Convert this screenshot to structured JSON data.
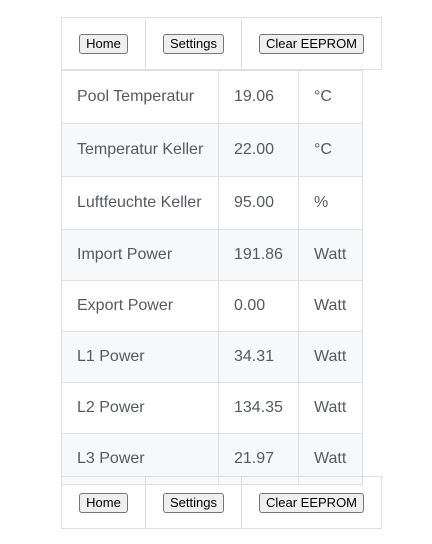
{
  "nav": {
    "home_label": "Home",
    "settings_label": "Settings",
    "clear_label": "Clear EEPROM"
  },
  "sensors": [
    {
      "name": "Pool Temperatur",
      "value": "19.06",
      "unit": "°C"
    },
    {
      "name": "Temperatur Keller",
      "value": "22.00",
      "unit": "°C"
    },
    {
      "name": "Luftfeuchte Keller",
      "value": "95.00",
      "unit": "%"
    },
    {
      "name": "Import Power",
      "value": "191.86",
      "unit": "Watt"
    },
    {
      "name": "Export Power",
      "value": "0.00",
      "unit": "Watt"
    },
    {
      "name": "L1 Power",
      "value": "34.31",
      "unit": "Watt"
    },
    {
      "name": "L2 Power",
      "value": "134.35",
      "unit": "Watt"
    },
    {
      "name": "L3 Power",
      "value": "21.97",
      "unit": "Watt"
    }
  ]
}
